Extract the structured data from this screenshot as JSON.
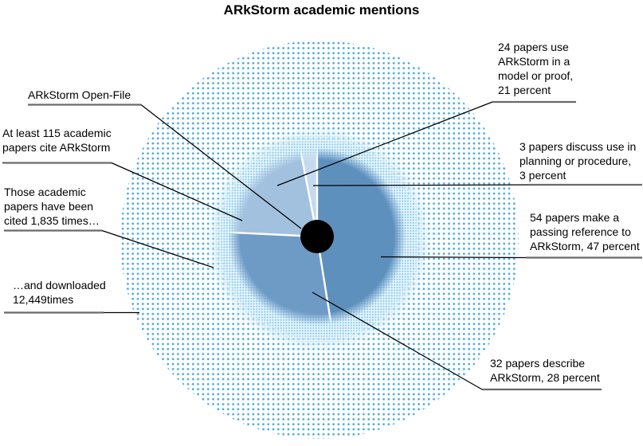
{
  "title": "ARkStorm academic mentions",
  "chart_data": {
    "type": "pie",
    "title": "ARkStorm academic mentions",
    "total_papers_note": "At least 115 academic papers cite ARkStorm",
    "total_papers": 115,
    "slices": [
      {
        "id": "passing-reference",
        "papers": 54,
        "percent": 47,
        "label": "54 papers make a passing reference to ARkStorm, 47 percent",
        "color": "#5E90BE"
      },
      {
        "id": "describe",
        "papers": 32,
        "percent": 28,
        "label": "32 papers describe ARkStorm, 28 percent",
        "color": "#6E9AC6"
      },
      {
        "id": "model-or-proof",
        "papers": 24,
        "percent": 21,
        "label": "24 papers use ARkStorm in a model or proof, 21 percent",
        "color": "#A2C1DE"
      },
      {
        "id": "planning-procedure",
        "papers": 3,
        "percent": 3,
        "label": "3 papers discuss use in planning or procedure, 3 percent",
        "color": "#C6DAEE"
      }
    ],
    "start_angle_deg": 0,
    "clockwise": true,
    "center": {
      "id": "open-file",
      "label": "ARkStorm Open-File",
      "color": "#000000"
    },
    "rings": [
      {
        "id": "citations",
        "label": "Those academic papers have been cited 1,835 times…",
        "value": 1835,
        "style": "fine light-blue halftone"
      },
      {
        "id": "downloads",
        "label": "…and downloaded 12,449times",
        "value": 12449,
        "style": "coarse blue halftone"
      }
    ],
    "legend_position": "callouts"
  },
  "annotations": {
    "open_file": "ARkStorm Open-File",
    "cite_115": "At least 115 academic\npapers cite ARkStorm",
    "cited_1835": "Those academic\npapers have been\ncited 1,835 times…",
    "downloaded": "…and downloaded\n12,449times",
    "use_model": "24 papers use\nARkStorm in a\nmodel or proof,\n21 percent",
    "planning": "3 papers discuss use in\nplanning or procedure,\n3 percent",
    "passing": "54 papers make a\npassing reference to\nARkStorm, 47 percent",
    "describe": "32 papers describe\nARkStorm, 28 percent"
  },
  "colors": {
    "outer_dots": "#45A9DB",
    "middle_dots": "#8ECDEC",
    "slice_divider": "#FFFFFF",
    "leader_line": "#000000",
    "label_rule": "#6A6A6A",
    "center_dot": "#000000"
  }
}
